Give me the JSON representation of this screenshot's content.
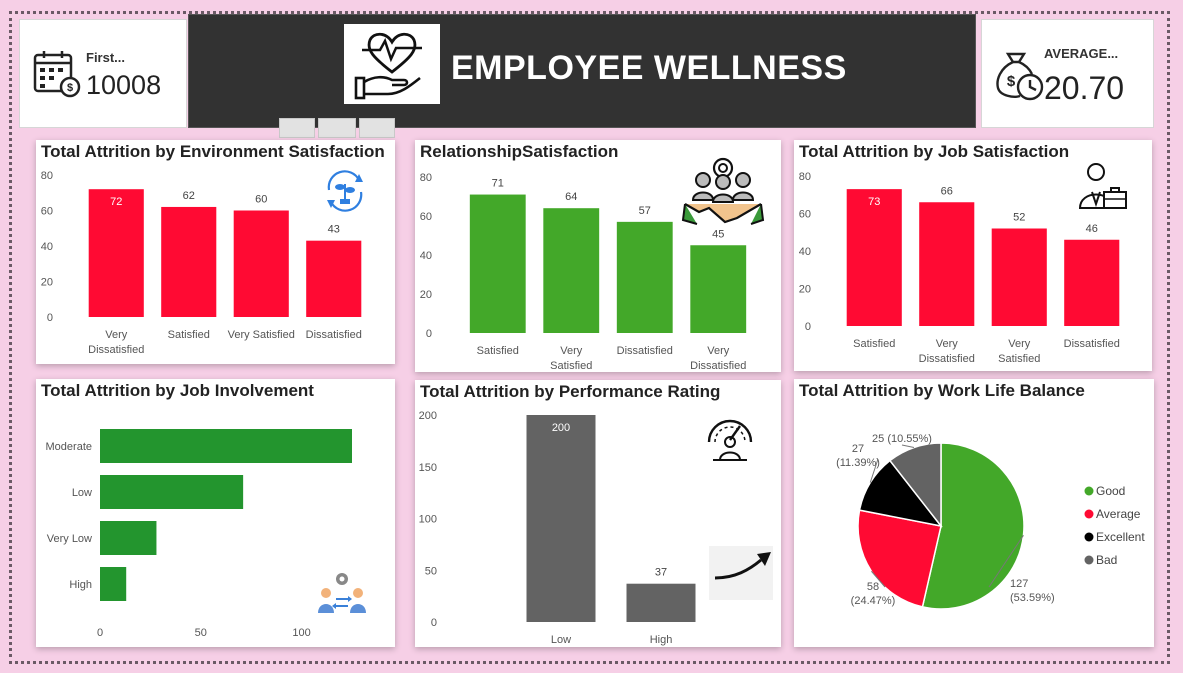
{
  "header": {
    "title": "EMPLOYEE WELLNESS"
  },
  "kpi_left": {
    "label": "First...",
    "value": "10008",
    "icon": "calendar-dollar-icon"
  },
  "kpi_right": {
    "label": "AVERAGE...",
    "value": "20.70",
    "icon": "money-bag-clock-icon"
  },
  "colors": {
    "red": "#ff0a33",
    "green": "#43a829",
    "dark_green": "#23952e",
    "gray": "#636363",
    "black": "#000000",
    "header_bg": "#323232"
  },
  "chart_data": [
    {
      "id": "env",
      "type": "bar",
      "title": "Total Attrition by Environment Satisfaction",
      "categories": [
        "Very Dissatisfied",
        "Satisfied",
        "Very Satisfied",
        "Dissatisfied"
      ],
      "values": [
        72,
        62,
        60,
        43
      ],
      "ylim": [
        0,
        80
      ],
      "yticks": [
        0,
        20,
        40,
        60,
        80
      ],
      "color": "#ff0a33"
    },
    {
      "id": "rel",
      "type": "bar",
      "title": "RelationshipSatisfaction",
      "categories": [
        "Satisfied",
        "Very Satisfied",
        "Dissatisfied",
        "Very Dissatisfied"
      ],
      "values": [
        71,
        64,
        57,
        45
      ],
      "ylim": [
        0,
        80
      ],
      "yticks": [
        0,
        20,
        40,
        60,
        80
      ],
      "color": "#43a829"
    },
    {
      "id": "job",
      "type": "bar",
      "title": "Total Attrition by Job Satisfaction",
      "categories": [
        "Satisfied",
        "Very Dissatisfied",
        "Very Satisfied",
        "Dissatisfied"
      ],
      "values": [
        73,
        66,
        52,
        46
      ],
      "ylim": [
        0,
        80
      ],
      "yticks": [
        0,
        20,
        40,
        60,
        80
      ],
      "color": "#ff0a33"
    },
    {
      "id": "inv",
      "type": "bar-horizontal",
      "title": "Total Attrition by Job Involvement",
      "categories": [
        "Moderate",
        "Low",
        "Very Low",
        "High"
      ],
      "values": [
        125,
        71,
        28,
        13
      ],
      "xlim": [
        0,
        125
      ],
      "xticks": [
        0,
        50,
        100
      ],
      "color": "#23952e"
    },
    {
      "id": "perf",
      "type": "bar",
      "title": "Total Attrition by Performance Rating",
      "categories": [
        "Low",
        "High"
      ],
      "values": [
        200,
        37
      ],
      "ylim": [
        0,
        200
      ],
      "yticks": [
        0,
        50,
        100,
        150,
        200
      ],
      "color": "#636363"
    },
    {
      "id": "wlb",
      "type": "pie",
      "title": "Total Attrition by Work Life Balance",
      "slices": [
        {
          "name": "Good",
          "value": 127,
          "label_value": "127",
          "label_pct": "(53.59%)",
          "color": "#43a829"
        },
        {
          "name": "Average",
          "value": 58,
          "label_value": "58",
          "label_pct": "(24.47%)",
          "color": "#ff0a33"
        },
        {
          "name": "Excellent",
          "value": 27,
          "label_value": "27",
          "label_pct": "(11.39%)",
          "color": "#000000"
        },
        {
          "name": "Bad",
          "value": 25,
          "label_value": "25 (10.55%)",
          "label_pct": "",
          "color": "#636363"
        }
      ],
      "legend_position": "right"
    }
  ]
}
